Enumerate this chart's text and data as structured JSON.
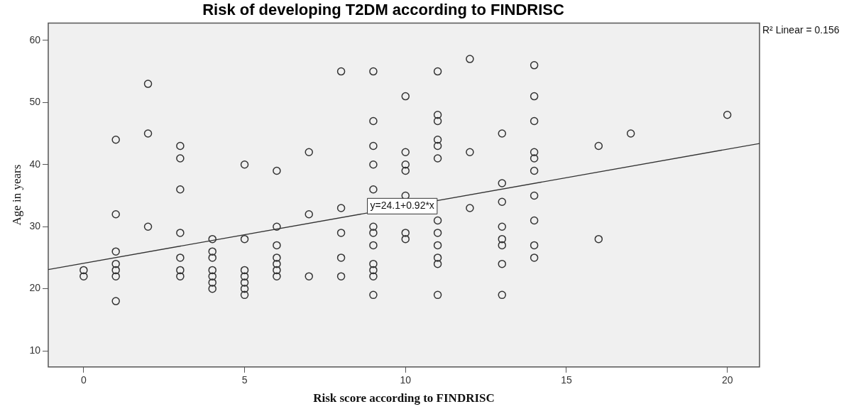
{
  "chart_data": {
    "type": "scatter",
    "title": "Risk of developing T2DM according to FINDRISC",
    "xlabel": "Risk score according to FINDRISC",
    "ylabel": "Age in years",
    "xlim": [
      -1.1,
      21
    ],
    "xticks": [
      0,
      5,
      10,
      15,
      20
    ],
    "ylim": [
      7.4,
      62.8
    ],
    "yticks": [
      10,
      20,
      30,
      40,
      50,
      60
    ],
    "grid": false,
    "legend": false,
    "marker": "circle",
    "annotations": [
      "R² Linear = 0.156",
      {
        "text": "y=24.1+0.92*x",
        "x": 9.9,
        "y": 33.3
      }
    ],
    "series": [
      {
        "type": "scatter",
        "color": "#333333",
        "x": [
          0,
          0,
          1,
          1,
          1,
          1,
          1,
          1,
          1,
          2,
          2,
          2,
          3,
          3,
          3,
          3,
          3,
          3,
          3,
          4,
          4,
          4,
          4,
          4,
          4,
          4,
          5,
          5,
          5,
          5,
          5,
          5,
          5,
          6,
          6,
          6,
          6,
          6,
          6,
          6,
          7,
          7,
          7,
          8,
          8,
          8,
          8,
          8,
          9,
          9,
          9,
          9,
          9,
          9,
          9,
          9,
          9,
          9,
          9,
          9,
          10,
          10,
          10,
          10,
          10,
          10,
          10,
          11,
          11,
          11,
          11,
          11,
          11,
          11,
          11,
          11,
          11,
          11,
          11,
          12,
          12,
          12,
          13,
          13,
          13,
          13,
          13,
          13,
          13,
          13,
          14,
          14,
          14,
          14,
          14,
          14,
          14,
          14,
          14,
          14,
          16,
          16,
          17,
          20
        ],
        "values": [
          23,
          22,
          44,
          32,
          26,
          24,
          23,
          22,
          18,
          53,
          45,
          30,
          43,
          41,
          36,
          29,
          25,
          23,
          22,
          28,
          26,
          25,
          23,
          22,
          21,
          20,
          40,
          28,
          23,
          22,
          21,
          20,
          19,
          39,
          30,
          27,
          25,
          24,
          23,
          22,
          42,
          32,
          22,
          55,
          33,
          29,
          25,
          22,
          55,
          47,
          43,
          40,
          36,
          30,
          29,
          27,
          24,
          23,
          22,
          19,
          51,
          42,
          40,
          39,
          35,
          29,
          28,
          55,
          48,
          47,
          44,
          43,
          41,
          31,
          29,
          27,
          25,
          24,
          19,
          57,
          42,
          33,
          45,
          37,
          34,
          30,
          28,
          27,
          24,
          19,
          56,
          51,
          47,
          42,
          41,
          39,
          35,
          31,
          27,
          25,
          43,
          28,
          45,
          48
        ]
      },
      {
        "type": "line",
        "color": "#333333",
        "marker": "none",
        "x": [
          -1.1,
          21
        ],
        "values": [
          23.1,
          43.4
        ]
      }
    ]
  }
}
